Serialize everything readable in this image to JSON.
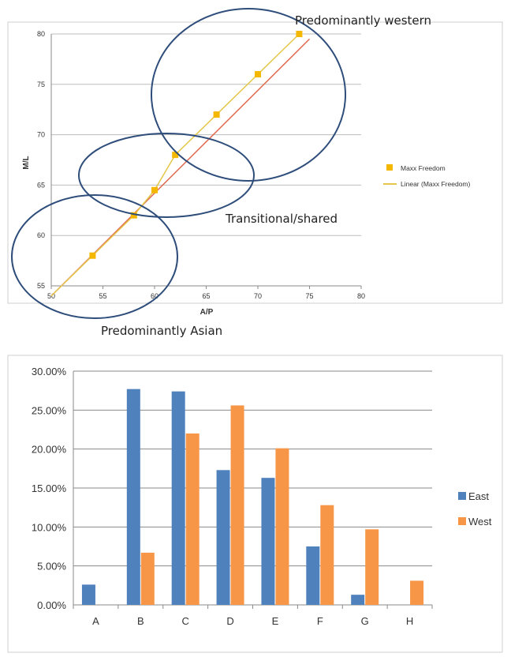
{
  "chart_data": [
    {
      "type": "scatter",
      "xlabel": "A/P",
      "ylabel": "M/L",
      "xlim": [
        50,
        80
      ],
      "ylim": [
        55,
        80
      ],
      "x_ticks": [
        "50",
        "55",
        "60",
        "65",
        "70",
        "75",
        "80"
      ],
      "y_ticks": [
        "55",
        "60",
        "65",
        "70",
        "75",
        "80"
      ],
      "grid": "horizontal",
      "legend_position": "right",
      "series": [
        {
          "name": "Maxx Freedom",
          "points": [
            [
              54,
              58
            ],
            [
              58,
              62
            ],
            [
              60,
              64.5
            ],
            [
              62,
              68
            ],
            [
              66,
              72
            ],
            [
              70,
              76
            ],
            [
              74,
              80
            ]
          ],
          "color": "#F5B800"
        }
      ],
      "trendline": {
        "name": "Linear (Maxx Freedom)",
        "from": [
          50,
          54
        ],
        "to": [
          75,
          80
        ],
        "color": "#E4C74A"
      },
      "fit_line": {
        "from": [
          50,
          54
        ],
        "to": [
          75,
          79.5
        ],
        "color": "#E06A4F"
      },
      "annotations": [
        {
          "text": "Predominantly western"
        },
        {
          "text": "Transitional/shared"
        },
        {
          "text": "Predominantly Asian"
        }
      ],
      "ellipse_color": "#2E4D7A"
    },
    {
      "type": "bar",
      "categories": [
        "A",
        "B",
        "C",
        "D",
        "E",
        "F",
        "G",
        "H"
      ],
      "series": [
        {
          "name": "East",
          "values": [
            2.6,
            27.7,
            27.4,
            17.3,
            16.3,
            7.5,
            1.3,
            0
          ],
          "color": "#4F81BD"
        },
        {
          "name": "West",
          "values": [
            0,
            6.7,
            22.0,
            25.6,
            20.1,
            12.8,
            9.7,
            3.1
          ],
          "color": "#F79646"
        }
      ],
      "ylim": [
        0,
        30
      ],
      "y_ticks": [
        "0.00%",
        "5.00%",
        "10.00%",
        "15.00%",
        "20.00%",
        "25.00%",
        "30.00%"
      ],
      "grid": "horizontal",
      "legend_position": "right"
    }
  ]
}
